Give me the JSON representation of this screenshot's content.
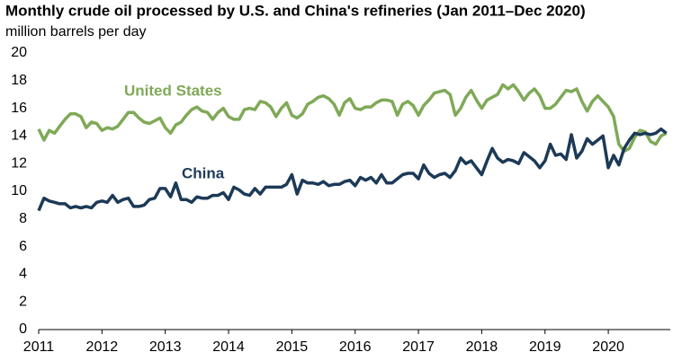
{
  "chart_data": {
    "type": "line",
    "title": "Monthly crude oil processed by U.S. and China's refineries (Jan 2011–Dec 2020)",
    "subtitle": "million barrels per day",
    "categories": [
      "2011",
      null,
      null,
      null,
      null,
      null,
      null,
      null,
      null,
      null,
      null,
      null,
      "2012",
      null,
      null,
      null,
      null,
      null,
      null,
      null,
      null,
      null,
      null,
      null,
      "2013",
      null,
      null,
      null,
      null,
      null,
      null,
      null,
      null,
      null,
      null,
      null,
      "2014",
      null,
      null,
      null,
      null,
      null,
      null,
      null,
      null,
      null,
      null,
      null,
      "2015",
      null,
      null,
      null,
      null,
      null,
      null,
      null,
      null,
      null,
      null,
      null,
      "2016",
      null,
      null,
      null,
      null,
      null,
      null,
      null,
      null,
      null,
      null,
      null,
      "2017",
      null,
      null,
      null,
      null,
      null,
      null,
      null,
      null,
      null,
      null,
      null,
      "2018",
      null,
      null,
      null,
      null,
      null,
      null,
      null,
      null,
      null,
      null,
      null,
      "2019",
      null,
      null,
      null,
      null,
      null,
      null,
      null,
      null,
      null,
      null,
      null,
      "2020",
      null,
      null,
      null,
      null,
      null,
      null,
      null,
      null,
      null,
      null,
      null
    ],
    "series": [
      {
        "name": "United States",
        "color": "#7fa957",
        "values": [
          14.5,
          13.7,
          14.4,
          14.2,
          14.7,
          15.2,
          15.6,
          15.6,
          15.4,
          14.6,
          15.0,
          14.9,
          14.4,
          14.6,
          14.5,
          14.7,
          15.2,
          15.7,
          15.7,
          15.3,
          15.0,
          14.9,
          15.1,
          15.3,
          14.6,
          14.2,
          14.8,
          15.0,
          15.5,
          15.9,
          16.1,
          15.8,
          15.7,
          15.2,
          15.7,
          16.0,
          15.4,
          15.2,
          15.2,
          15.9,
          16.0,
          15.9,
          16.5,
          16.4,
          16.1,
          15.4,
          16.0,
          16.4,
          15.5,
          15.3,
          15.6,
          16.3,
          16.5,
          16.8,
          16.9,
          16.7,
          16.3,
          15.5,
          16.4,
          16.7,
          16.0,
          15.9,
          16.1,
          16.1,
          16.4,
          16.6,
          16.6,
          16.5,
          15.5,
          16.3,
          16.5,
          16.2,
          15.5,
          16.2,
          16.6,
          17.1,
          17.2,
          17.3,
          17.0,
          15.5,
          16.0,
          16.8,
          17.3,
          16.6,
          16.0,
          16.6,
          16.8,
          17.0,
          17.7,
          17.4,
          17.7,
          17.2,
          16.6,
          17.1,
          17.4,
          16.9,
          16.0,
          16.0,
          16.3,
          16.8,
          17.3,
          17.2,
          17.4,
          16.5,
          15.8,
          16.5,
          16.9,
          16.5,
          16.1,
          15.4,
          13.4,
          12.9,
          13.1,
          13.9,
          14.4,
          14.3,
          13.6,
          13.4,
          14.0,
          14.2
        ]
      },
      {
        "name": "China",
        "color": "#1c3a57",
        "values": [
          8.6,
          9.5,
          9.3,
          9.2,
          9.1,
          9.1,
          8.8,
          8.9,
          8.8,
          8.9,
          8.8,
          9.2,
          9.3,
          9.2,
          9.7,
          9.2,
          9.4,
          9.5,
          8.9,
          8.9,
          9.0,
          9.4,
          9.5,
          10.2,
          10.2,
          9.6,
          10.6,
          9.4,
          9.4,
          9.2,
          9.6,
          9.5,
          9.5,
          9.7,
          9.7,
          9.9,
          9.4,
          10.3,
          10.1,
          9.8,
          9.7,
          10.2,
          9.8,
          10.3,
          10.3,
          10.3,
          10.3,
          10.5,
          11.2,
          9.8,
          10.8,
          10.6,
          10.6,
          10.5,
          10.7,
          10.4,
          10.5,
          10.5,
          10.7,
          10.8,
          10.4,
          11.0,
          10.8,
          11.0,
          10.6,
          11.2,
          10.6,
          10.6,
          10.9,
          11.2,
          11.3,
          11.3,
          10.9,
          11.9,
          11.3,
          11.0,
          11.2,
          11.3,
          11.0,
          11.5,
          12.4,
          12.0,
          12.2,
          11.7,
          11.2,
          12.2,
          13.1,
          12.4,
          12.1,
          12.3,
          12.2,
          12.0,
          12.8,
          12.5,
          12.2,
          11.7,
          12.2,
          13.4,
          12.6,
          12.7,
          12.3,
          14.1,
          12.4,
          12.9,
          13.8,
          13.4,
          13.7,
          14.0,
          11.7,
          12.6,
          11.9,
          13.1,
          13.7,
          14.2,
          14.1,
          14.2,
          14.1,
          14.2,
          14.5,
          14.2
        ]
      }
    ],
    "ylim": [
      0,
      20
    ],
    "yticks": [
      0,
      2,
      4,
      6,
      8,
      10,
      12,
      14,
      16,
      18,
      20
    ],
    "grid": false
  }
}
